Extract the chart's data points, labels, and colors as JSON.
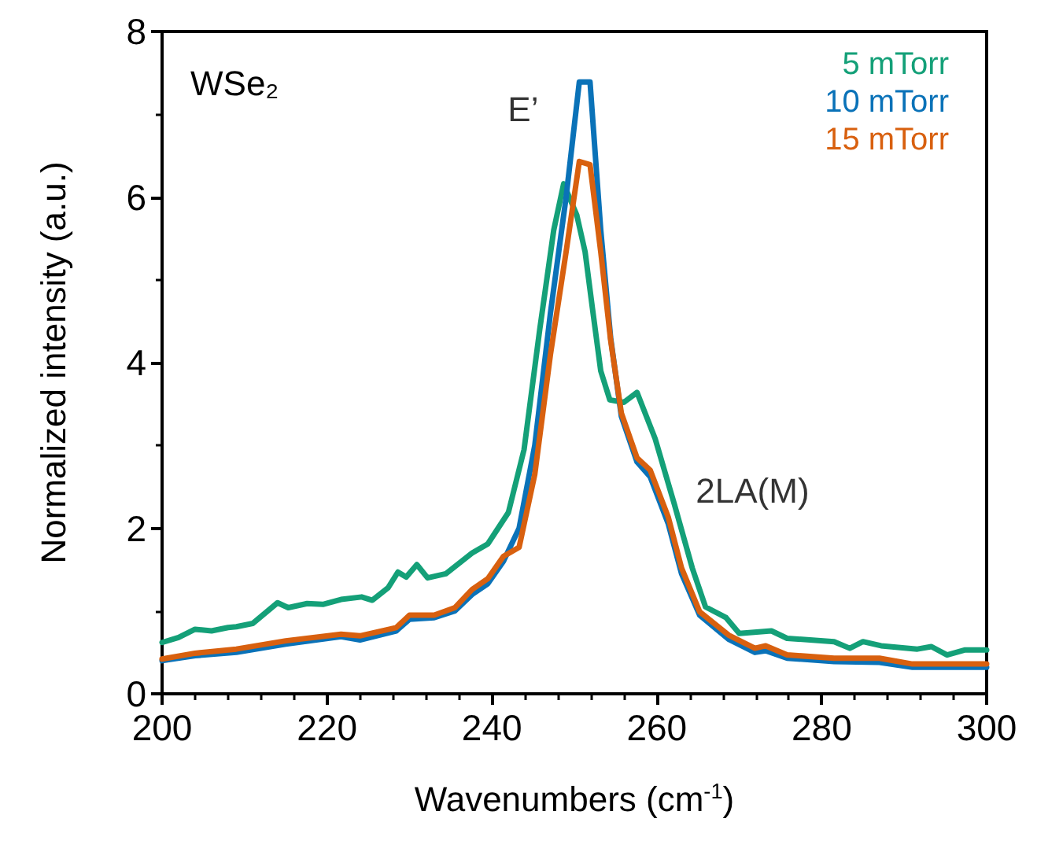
{
  "chart_data": {
    "type": "line",
    "xlabel": "Wavenumbers (cm$^{-1}$)",
    "ylabel": "Normalized intensity (a.u.)",
    "xlim": [
      200,
      300
    ],
    "xticks": [
      200,
      220,
      240,
      260,
      280,
      300
    ],
    "ylim": [
      0,
      8
    ],
    "yticks": [
      0,
      2,
      4,
      6,
      8
    ],
    "grid": false,
    "legend": "top right",
    "line_style": "solid",
    "marker": "none",
    "annotations": [
      "WSe₂",
      {
        "text": "E’",
        "x": 251,
        "y": 7.4
      },
      {
        "text": "2LA(M)",
        "x": 259,
        "y": 3.4
      }
    ],
    "series": [
      {
        "name": "5 mTorr",
        "color": "#14a078",
        "x": [
          200,
          202,
          204,
          206,
          208,
          209,
          211,
          214,
          215.3,
          217.6,
          219.5,
          221.7,
          224.2,
          225.5,
          227.4,
          228.6,
          229.6,
          230.9,
          232.2,
          234.4,
          237.6,
          239.5,
          242,
          243.9,
          245.8,
          247.5,
          248.7,
          250.3,
          251.3,
          252.2,
          253.2,
          254.3,
          256,
          257.6,
          259.8,
          262.1,
          264.3,
          265.9,
          268.4,
          270,
          273.9,
          275.8,
          281.5,
          283.4,
          285,
          287.2,
          291.6,
          293.3,
          295.2,
          297.4,
          300
        ],
        "values": [
          0.62,
          0.68,
          0.78,
          0.76,
          0.8,
          0.81,
          0.85,
          1.1,
          1.04,
          1.09,
          1.08,
          1.14,
          1.17,
          1.13,
          1.28,
          1.47,
          1.41,
          1.56,
          1.4,
          1.45,
          1.7,
          1.81,
          2.19,
          2.95,
          4.4,
          5.6,
          6.16,
          5.78,
          5.34,
          4.65,
          3.9,
          3.55,
          3.52,
          3.64,
          3.08,
          2.3,
          1.52,
          1.05,
          0.92,
          0.73,
          0.76,
          0.67,
          0.63,
          0.55,
          0.63,
          0.58,
          0.54,
          0.57,
          0.47,
          0.53,
          0.53
        ]
      },
      {
        "name": "10 mTorr",
        "color": "#0a72b8",
        "x": [
          200,
          204,
          209,
          215,
          221.7,
          224,
          228.4,
          230,
          233,
          235.5,
          237.6,
          239.5,
          241.4,
          243.3,
          245.2,
          247.1,
          249,
          250.6,
          251.9,
          253.2,
          254.4,
          255.7,
          257.6,
          259.2,
          261.4,
          263,
          265.2,
          268.7,
          271.9,
          273.2,
          275.8,
          281.5,
          287,
          291,
          300
        ],
        "values": [
          0.4,
          0.46,
          0.5,
          0.6,
          0.69,
          0.65,
          0.76,
          0.9,
          0.92,
          1.0,
          1.2,
          1.33,
          1.6,
          2.0,
          3.0,
          4.6,
          6.0,
          7.39,
          7.39,
          5.6,
          4.3,
          3.35,
          2.8,
          2.62,
          2.05,
          1.45,
          0.95,
          0.66,
          0.5,
          0.52,
          0.43,
          0.39,
          0.38,
          0.32,
          0.32
        ]
      },
      {
        "name": "15 mTorr",
        "color": "#d8600f",
        "x": [
          200,
          204,
          209,
          215,
          221.7,
          224,
          228.4,
          230,
          233,
          235.5,
          237.6,
          239.5,
          241.4,
          243.3,
          245.2,
          247.1,
          249,
          250.6,
          251.9,
          253.2,
          254.4,
          255.7,
          257.6,
          259.2,
          261.4,
          263,
          265.2,
          268.7,
          271.9,
          273.2,
          275.8,
          281.5,
          287,
          291,
          300
        ],
        "values": [
          0.42,
          0.49,
          0.54,
          0.64,
          0.72,
          0.7,
          0.8,
          0.95,
          0.95,
          1.04,
          1.26,
          1.39,
          1.66,
          1.77,
          2.65,
          4.1,
          5.34,
          6.43,
          6.39,
          5.34,
          4.27,
          3.39,
          2.85,
          2.7,
          2.13,
          1.52,
          0.99,
          0.71,
          0.55,
          0.58,
          0.47,
          0.43,
          0.43,
          0.36,
          0.36
        ]
      }
    ]
  }
}
